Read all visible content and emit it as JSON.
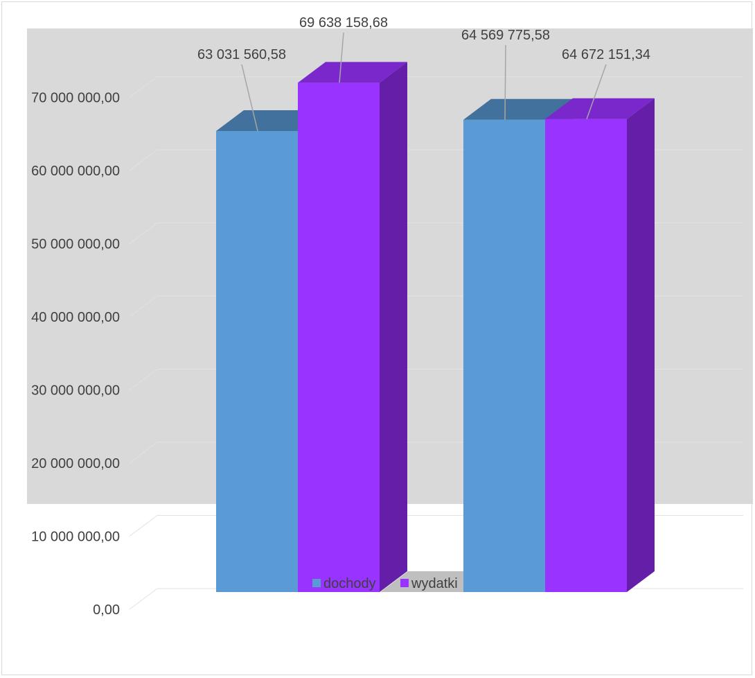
{
  "chart_data": {
    "type": "bar",
    "title": "",
    "xlabel": "",
    "ylabel": "",
    "three_d": true,
    "grid": true,
    "legend_position": "bottom",
    "categories": [
      "",
      ""
    ],
    "ylim": [
      0,
      70000000
    ],
    "y_ticks": [
      {
        "value": 0,
        "label": "0,00"
      },
      {
        "value": 10000000,
        "label": "10 000 000,00"
      },
      {
        "value": 20000000,
        "label": "20 000 000,00"
      },
      {
        "value": 30000000,
        "label": "30 000 000,00"
      },
      {
        "value": 40000000,
        "label": "40 000 000,00"
      },
      {
        "value": 50000000,
        "label": "50 000 000,00"
      },
      {
        "value": 60000000,
        "label": "60 000 000,00"
      },
      {
        "value": 70000000,
        "label": "70 000 000,00"
      }
    ],
    "series": [
      {
        "name": "dochody",
        "color": "#5b9bd5",
        "top_color": "#41719c",
        "side_color": "#41719c",
        "values": [
          63031560.58,
          64569775.58
        ],
        "labels": [
          "63 031 560,58",
          "64 569 775,58"
        ]
      },
      {
        "name": "wydatki",
        "color": "#9933ff",
        "top_color": "#7a28cc",
        "side_color": "#641ea8",
        "values": [
          69638158.68,
          64672151.34
        ],
        "labels": [
          "69 638 158,68",
          "64 672 151,34"
        ]
      }
    ],
    "plot_background": "#d9d9d9",
    "floor_color": "#bfbfbf",
    "gridline_color": "#e2e2e2"
  }
}
